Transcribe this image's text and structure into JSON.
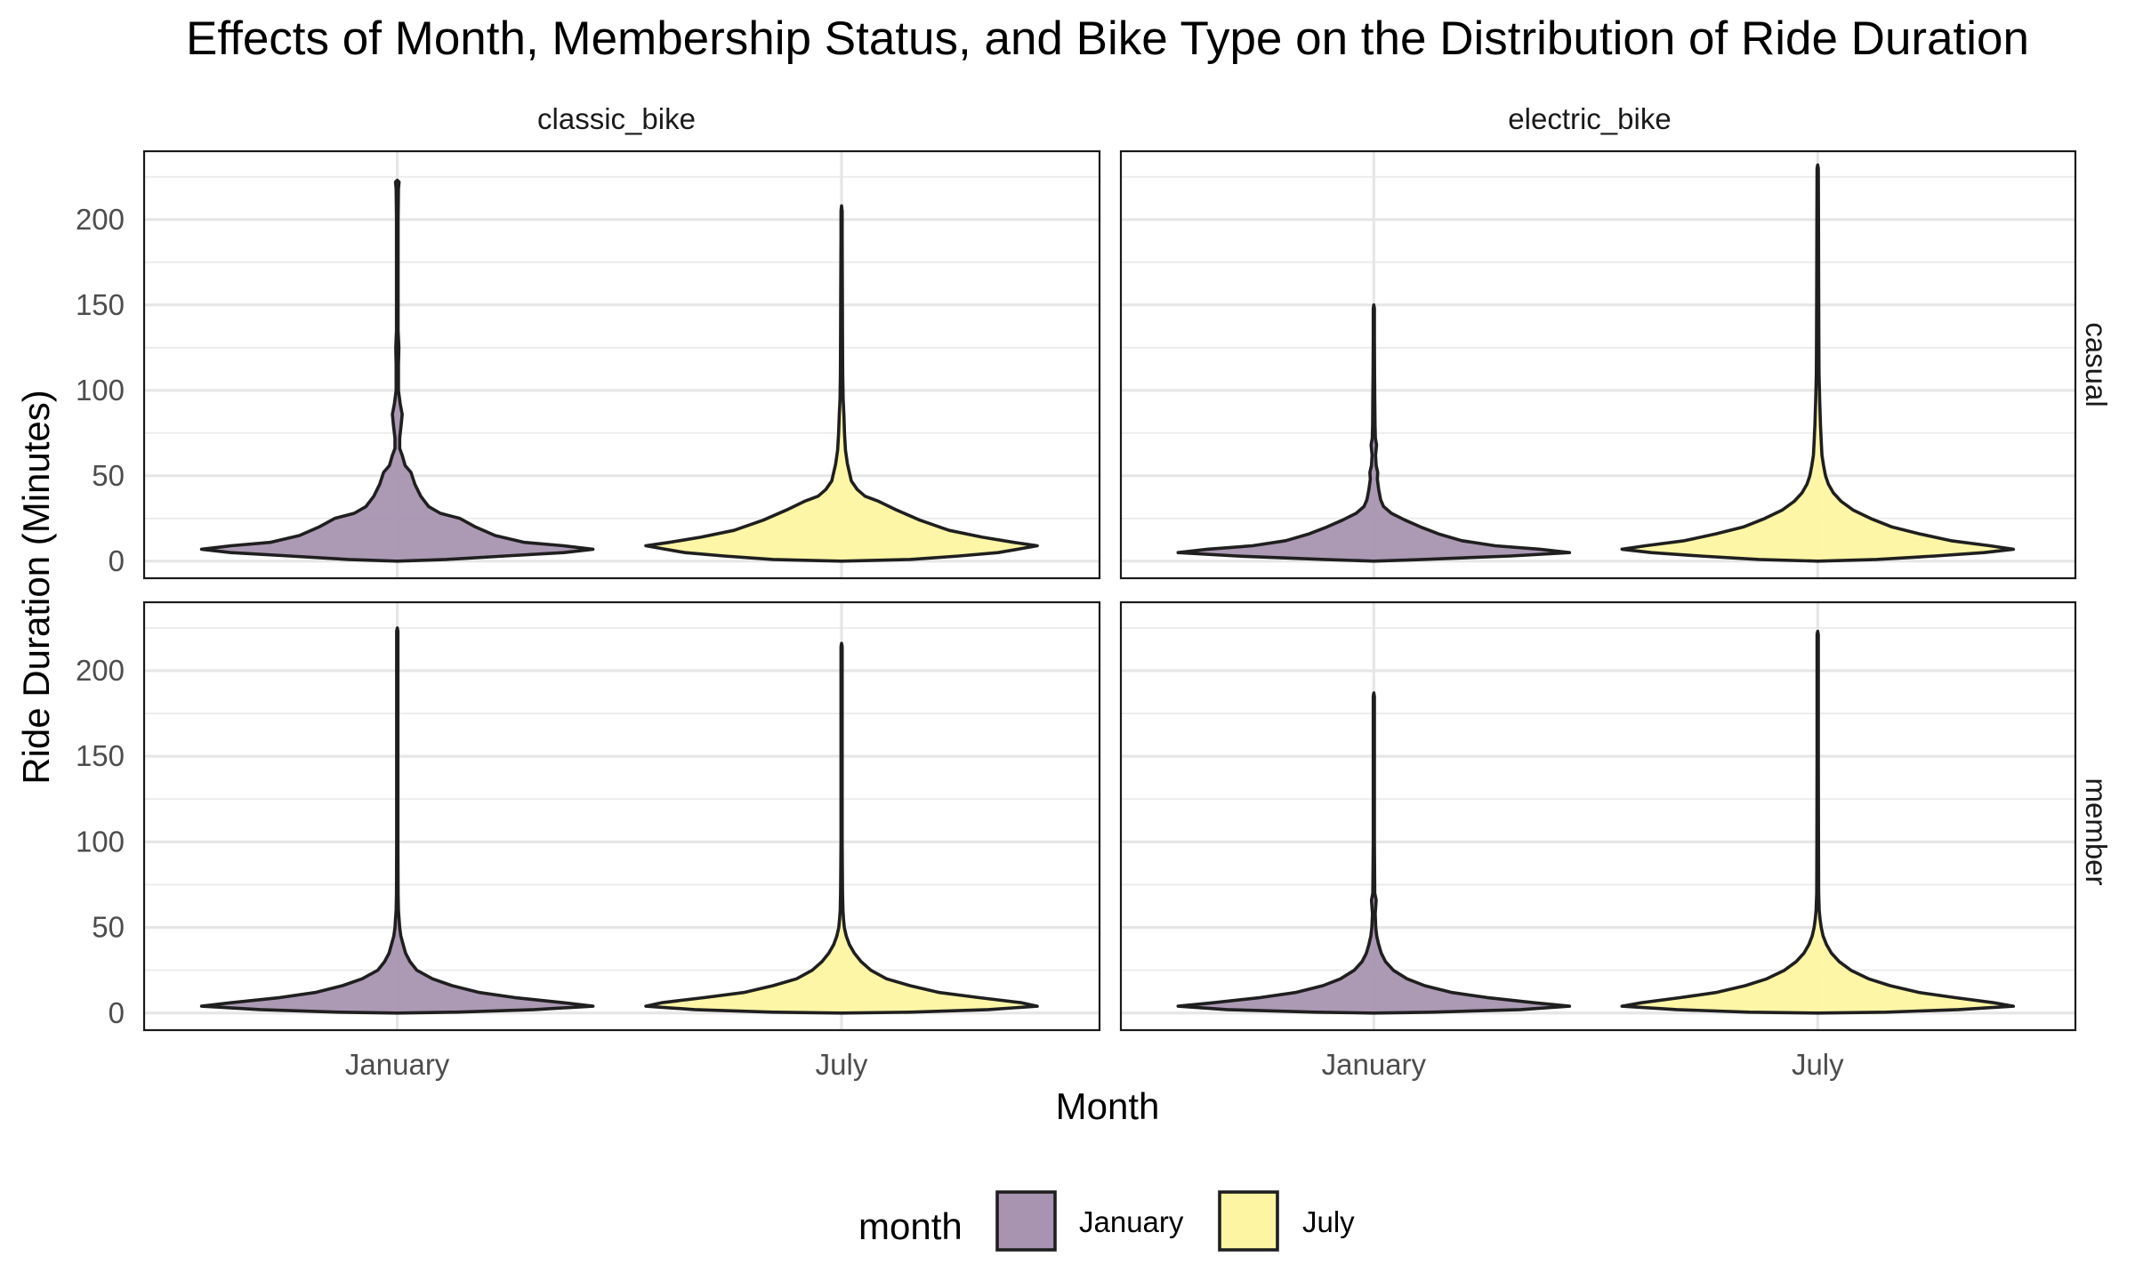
{
  "chart_data": {
    "type": "violin",
    "title": "Effects of Month, Membership Status, and Bike Type on the Distribution of Ride Duration",
    "xlabel": "Month",
    "ylabel": "Ride Duration (Minutes)",
    "x_categories": [
      "January",
      "July"
    ],
    "facet_columns": [
      "classic_bike",
      "electric_bike"
    ],
    "facet_rows": [
      "casual",
      "member"
    ],
    "y_ticks": [
      0,
      50,
      100,
      150,
      200
    ],
    "ylim": [
      -10,
      240
    ],
    "grid": true,
    "legend": {
      "title": "month",
      "position": "bottom",
      "entries": [
        {
          "label": "January",
          "color": "#a893b0"
        },
        {
          "label": "July",
          "color": "#fdf5a1"
        }
      ]
    },
    "colors": {
      "January": "#a893b0",
      "July": "#fdf5a1",
      "outline": "#1f1f1f"
    },
    "panels": [
      {
        "facet_col": "classic_bike",
        "facet_row": "casual",
        "violins": [
          {
            "month": "January",
            "max": 223,
            "profile": [
              [
                1,
                0.25
              ],
              [
                3,
                0.55
              ],
              [
                5,
                0.85
              ],
              [
                7,
                1.0
              ],
              [
                9,
                0.85
              ],
              [
                11,
                0.65
              ],
              [
                15,
                0.5
              ],
              [
                20,
                0.4
              ],
              [
                25,
                0.32
              ],
              [
                28,
                0.22
              ],
              [
                32,
                0.16
              ],
              [
                38,
                0.12
              ],
              [
                45,
                0.09
              ],
              [
                52,
                0.07
              ],
              [
                56,
                0.04
              ],
              [
                62,
                0.025
              ],
              [
                66,
                0.012
              ],
              [
                72,
                0.012
              ],
              [
                80,
                0.02
              ],
              [
                86,
                0.025
              ],
              [
                92,
                0.015
              ],
              [
                100,
                0.006
              ],
              [
                115,
                0.006
              ],
              [
                125,
                0.008
              ],
              [
                135,
                0.004
              ],
              [
                160,
                0.004
              ],
              [
                200,
                0.004
              ],
              [
                218,
                0.006
              ],
              [
                222,
                0.009
              ]
            ]
          },
          {
            "month": "July",
            "max": 208,
            "profile": [
              [
                1,
                0.35
              ],
              [
                3,
                0.6
              ],
              [
                5,
                0.8
              ],
              [
                7,
                0.9
              ],
              [
                9,
                1.0
              ],
              [
                11,
                0.88
              ],
              [
                14,
                0.72
              ],
              [
                18,
                0.55
              ],
              [
                24,
                0.4
              ],
              [
                30,
                0.28
              ],
              [
                35,
                0.19
              ],
              [
                38,
                0.12
              ],
              [
                42,
                0.08
              ],
              [
                47,
                0.05
              ],
              [
                52,
                0.04
              ],
              [
                57,
                0.03
              ],
              [
                65,
                0.02
              ],
              [
                75,
                0.015
              ],
              [
                85,
                0.012
              ],
              [
                95,
                0.008
              ],
              [
                110,
                0.006
              ],
              [
                130,
                0.005
              ],
              [
                160,
                0.004
              ],
              [
                190,
                0.003
              ],
              [
                205,
                0.003
              ]
            ]
          }
        ]
      },
      {
        "facet_col": "electric_bike",
        "facet_row": "casual",
        "violins": [
          {
            "month": "January",
            "max": 150,
            "profile": [
              [
                1,
                0.25
              ],
              [
                3,
                0.7
              ],
              [
                5,
                1.0
              ],
              [
                7,
                0.85
              ],
              [
                9,
                0.62
              ],
              [
                12,
                0.45
              ],
              [
                16,
                0.33
              ],
              [
                20,
                0.24
              ],
              [
                24,
                0.16
              ],
              [
                28,
                0.09
              ],
              [
                32,
                0.05
              ],
              [
                36,
                0.035
              ],
              [
                42,
                0.025
              ],
              [
                48,
                0.018
              ],
              [
                52,
                0.02
              ],
              [
                56,
                0.012
              ],
              [
                62,
                0.009
              ],
              [
                68,
                0.014
              ],
              [
                72,
                0.008
              ],
              [
                80,
                0.006
              ],
              [
                95,
                0.005
              ],
              [
                110,
                0.004
              ],
              [
                130,
                0.003
              ],
              [
                148,
                0.003
              ]
            ]
          },
          {
            "month": "July",
            "max": 232,
            "profile": [
              [
                1,
                0.3
              ],
              [
                3,
                0.6
              ],
              [
                5,
                0.85
              ],
              [
                7,
                1.0
              ],
              [
                9,
                0.88
              ],
              [
                12,
                0.68
              ],
              [
                16,
                0.52
              ],
              [
                20,
                0.38
              ],
              [
                25,
                0.27
              ],
              [
                30,
                0.18
              ],
              [
                35,
                0.12
              ],
              [
                40,
                0.08
              ],
              [
                45,
                0.055
              ],
              [
                50,
                0.04
              ],
              [
                56,
                0.03
              ],
              [
                62,
                0.022
              ],
              [
                70,
                0.018
              ],
              [
                80,
                0.014
              ],
              [
                95,
                0.01
              ],
              [
                110,
                0.007
              ],
              [
                130,
                0.006
              ],
              [
                160,
                0.005
              ],
              [
                200,
                0.004
              ],
              [
                230,
                0.003
              ]
            ]
          }
        ]
      },
      {
        "facet_col": "classic_bike",
        "facet_row": "member",
        "violins": [
          {
            "month": "January",
            "max": 225,
            "profile": [
              [
                0.5,
                0.3
              ],
              [
                2,
                0.7
              ],
              [
                4,
                1.0
              ],
              [
                6,
                0.85
              ],
              [
                9,
                0.6
              ],
              [
                12,
                0.42
              ],
              [
                16,
                0.28
              ],
              [
                20,
                0.18
              ],
              [
                25,
                0.1
              ],
              [
                30,
                0.065
              ],
              [
                35,
                0.042
              ],
              [
                40,
                0.03
              ],
              [
                45,
                0.018
              ],
              [
                50,
                0.012
              ],
              [
                55,
                0.009
              ],
              [
                60,
                0.006
              ],
              [
                70,
                0.004
              ],
              [
                100,
                0.003
              ],
              [
                150,
                0.003
              ],
              [
                200,
                0.003
              ],
              [
                223,
                0.003
              ]
            ]
          },
          {
            "month": "July",
            "max": 216,
            "profile": [
              [
                0.5,
                0.35
              ],
              [
                2,
                0.75
              ],
              [
                4,
                1.0
              ],
              [
                6,
                0.92
              ],
              [
                9,
                0.7
              ],
              [
                12,
                0.5
              ],
              [
                16,
                0.35
              ],
              [
                20,
                0.23
              ],
              [
                25,
                0.15
              ],
              [
                30,
                0.1
              ],
              [
                35,
                0.065
              ],
              [
                40,
                0.04
              ],
              [
                45,
                0.024
              ],
              [
                50,
                0.014
              ],
              [
                55,
                0.01
              ],
              [
                60,
                0.007
              ],
              [
                70,
                0.005
              ],
              [
                100,
                0.003
              ],
              [
                150,
                0.003
              ],
              [
                214,
                0.003
              ]
            ]
          }
        ]
      },
      {
        "facet_col": "electric_bike",
        "facet_row": "member",
        "violins": [
          {
            "month": "January",
            "max": 187,
            "profile": [
              [
                0.5,
                0.3
              ],
              [
                2,
                0.75
              ],
              [
                4,
                1.0
              ],
              [
                6,
                0.82
              ],
              [
                9,
                0.58
              ],
              [
                12,
                0.4
              ],
              [
                16,
                0.26
              ],
              [
                20,
                0.17
              ],
              [
                25,
                0.1
              ],
              [
                30,
                0.06
              ],
              [
                35,
                0.038
              ],
              [
                40,
                0.025
              ],
              [
                45,
                0.015
              ],
              [
                50,
                0.01
              ],
              [
                58,
                0.007
              ],
              [
                66,
                0.012
              ],
              [
                70,
                0.005
              ],
              [
                100,
                0.003
              ],
              [
                150,
                0.003
              ],
              [
                185,
                0.003
              ]
            ]
          },
          {
            "month": "July",
            "max": 223,
            "profile": [
              [
                0.5,
                0.35
              ],
              [
                2,
                0.72
              ],
              [
                4,
                1.0
              ],
              [
                6,
                0.9
              ],
              [
                9,
                0.7
              ],
              [
                12,
                0.52
              ],
              [
                16,
                0.37
              ],
              [
                20,
                0.26
              ],
              [
                25,
                0.17
              ],
              [
                30,
                0.11
              ],
              [
                35,
                0.07
              ],
              [
                40,
                0.045
              ],
              [
                45,
                0.028
              ],
              [
                50,
                0.018
              ],
              [
                55,
                0.012
              ],
              [
                60,
                0.008
              ],
              [
                70,
                0.005
              ],
              [
                100,
                0.004
              ],
              [
                150,
                0.003
              ],
              [
                221,
                0.003
              ]
            ]
          }
        ]
      }
    ]
  }
}
